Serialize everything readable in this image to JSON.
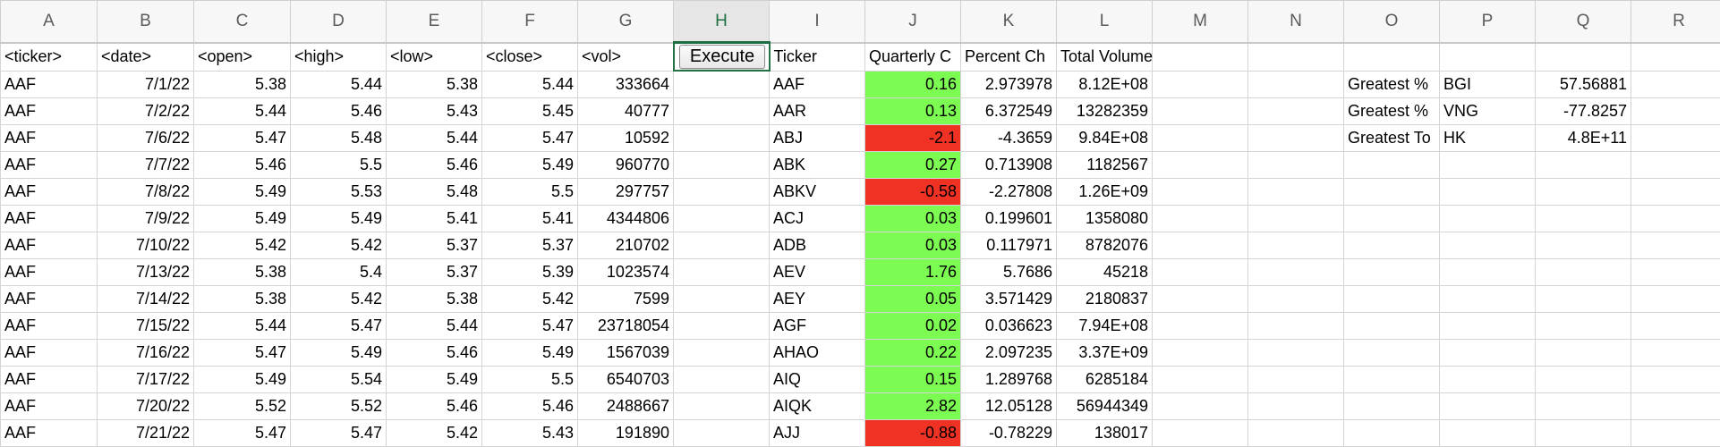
{
  "columns": [
    "A",
    "B",
    "C",
    "D",
    "E",
    "F",
    "G",
    "H",
    "I",
    "J",
    "K",
    "L",
    "M",
    "N",
    "O",
    "P",
    "Q",
    "R"
  ],
  "selected_column": "H",
  "headers": {
    "A": "<ticker>",
    "B": "<date>",
    "C": "<open>",
    "D": "<high>",
    "E": "<low>",
    "F": "<close>",
    "G": "<vol>",
    "I": "Ticker",
    "J": "Quarterly C",
    "K": "Percent Ch",
    "L": "Total Volume"
  },
  "button": {
    "label": "Execute"
  },
  "raw_rows": [
    [
      "AAF",
      "7/1/22",
      "5.38",
      "5.44",
      "5.38",
      "5.44",
      "333664"
    ],
    [
      "AAF",
      "7/2/22",
      "5.44",
      "5.46",
      "5.43",
      "5.45",
      "40777"
    ],
    [
      "AAF",
      "7/6/22",
      "5.47",
      "5.48",
      "5.44",
      "5.47",
      "10592"
    ],
    [
      "AAF",
      "7/7/22",
      "5.46",
      "5.5",
      "5.46",
      "5.49",
      "960770"
    ],
    [
      "AAF",
      "7/8/22",
      "5.49",
      "5.53",
      "5.48",
      "5.5",
      "297757"
    ],
    [
      "AAF",
      "7/9/22",
      "5.49",
      "5.49",
      "5.41",
      "5.41",
      "4344806"
    ],
    [
      "AAF",
      "7/10/22",
      "5.42",
      "5.42",
      "5.37",
      "5.37",
      "210702"
    ],
    [
      "AAF",
      "7/13/22",
      "5.38",
      "5.4",
      "5.37",
      "5.39",
      "1023574"
    ],
    [
      "AAF",
      "7/14/22",
      "5.38",
      "5.42",
      "5.38",
      "5.42",
      "7599"
    ],
    [
      "AAF",
      "7/15/22",
      "5.44",
      "5.47",
      "5.44",
      "5.47",
      "23718054"
    ],
    [
      "AAF",
      "7/16/22",
      "5.47",
      "5.49",
      "5.46",
      "5.49",
      "1567039"
    ],
    [
      "AAF",
      "7/17/22",
      "5.49",
      "5.54",
      "5.49",
      "5.5",
      "6540703"
    ],
    [
      "AAF",
      "7/20/22",
      "5.52",
      "5.52",
      "5.46",
      "5.46",
      "2488667"
    ],
    [
      "AAF",
      "7/21/22",
      "5.47",
      "5.47",
      "5.42",
      "5.43",
      "191890"
    ]
  ],
  "summary_rows": [
    {
      "ticker": "AAF",
      "qchange": "0.16",
      "pct": "2.973978",
      "vol": "8.12E+08",
      "status": "positive"
    },
    {
      "ticker": "AAR",
      "qchange": "0.13",
      "pct": "6.372549",
      "vol": "13282359",
      "status": "positive"
    },
    {
      "ticker": "ABJ",
      "qchange": "-2.1",
      "pct": "-4.3659",
      "vol": "9.84E+08",
      "status": "negative"
    },
    {
      "ticker": "ABK",
      "qchange": "0.27",
      "pct": "0.713908",
      "vol": "1182567",
      "status": "positive"
    },
    {
      "ticker": "ABKV",
      "qchange": "-0.58",
      "pct": "-2.27808",
      "vol": "1.26E+09",
      "status": "negative"
    },
    {
      "ticker": "ACJ",
      "qchange": "0.03",
      "pct": "0.199601",
      "vol": "1358080",
      "status": "positive"
    },
    {
      "ticker": "ADB",
      "qchange": "0.03",
      "pct": "0.117971",
      "vol": "8782076",
      "status": "positive"
    },
    {
      "ticker": "AEV",
      "qchange": "1.76",
      "pct": "5.7686",
      "vol": "45218",
      "status": "positive"
    },
    {
      "ticker": "AEY",
      "qchange": "0.05",
      "pct": "3.571429",
      "vol": "2180837",
      "status": "positive"
    },
    {
      "ticker": "AGF",
      "qchange": "0.02",
      "pct": "0.036623",
      "vol": "7.94E+08",
      "status": "positive"
    },
    {
      "ticker": "AHAO",
      "qchange": "0.22",
      "pct": "2.097235",
      "vol": "3.37E+09",
      "status": "positive"
    },
    {
      "ticker": "AIQ",
      "qchange": "0.15",
      "pct": "1.289768",
      "vol": "6285184",
      "status": "positive"
    },
    {
      "ticker": "AIQK",
      "qchange": "2.82",
      "pct": "12.05128",
      "vol": "56944349",
      "status": "positive"
    },
    {
      "ticker": "AJJ",
      "qchange": "-0.88",
      "pct": "-0.78229",
      "vol": "138017",
      "status": "negative"
    }
  ],
  "greatest": [
    {
      "label": "Greatest %",
      "ticker": "BGI",
      "value": "57.56881"
    },
    {
      "label": "Greatest %",
      "ticker": "VNG",
      "value": "-77.8257"
    },
    {
      "label": "Greatest To",
      "ticker": "HK",
      "value": "4.8E+11"
    }
  ],
  "colors": {
    "positive_fill": "#7cfb53",
    "negative_fill": "#ef3223",
    "selection": "#217346",
    "header_bg": "#f7f7f7",
    "gridline": "#d4d4d4"
  }
}
